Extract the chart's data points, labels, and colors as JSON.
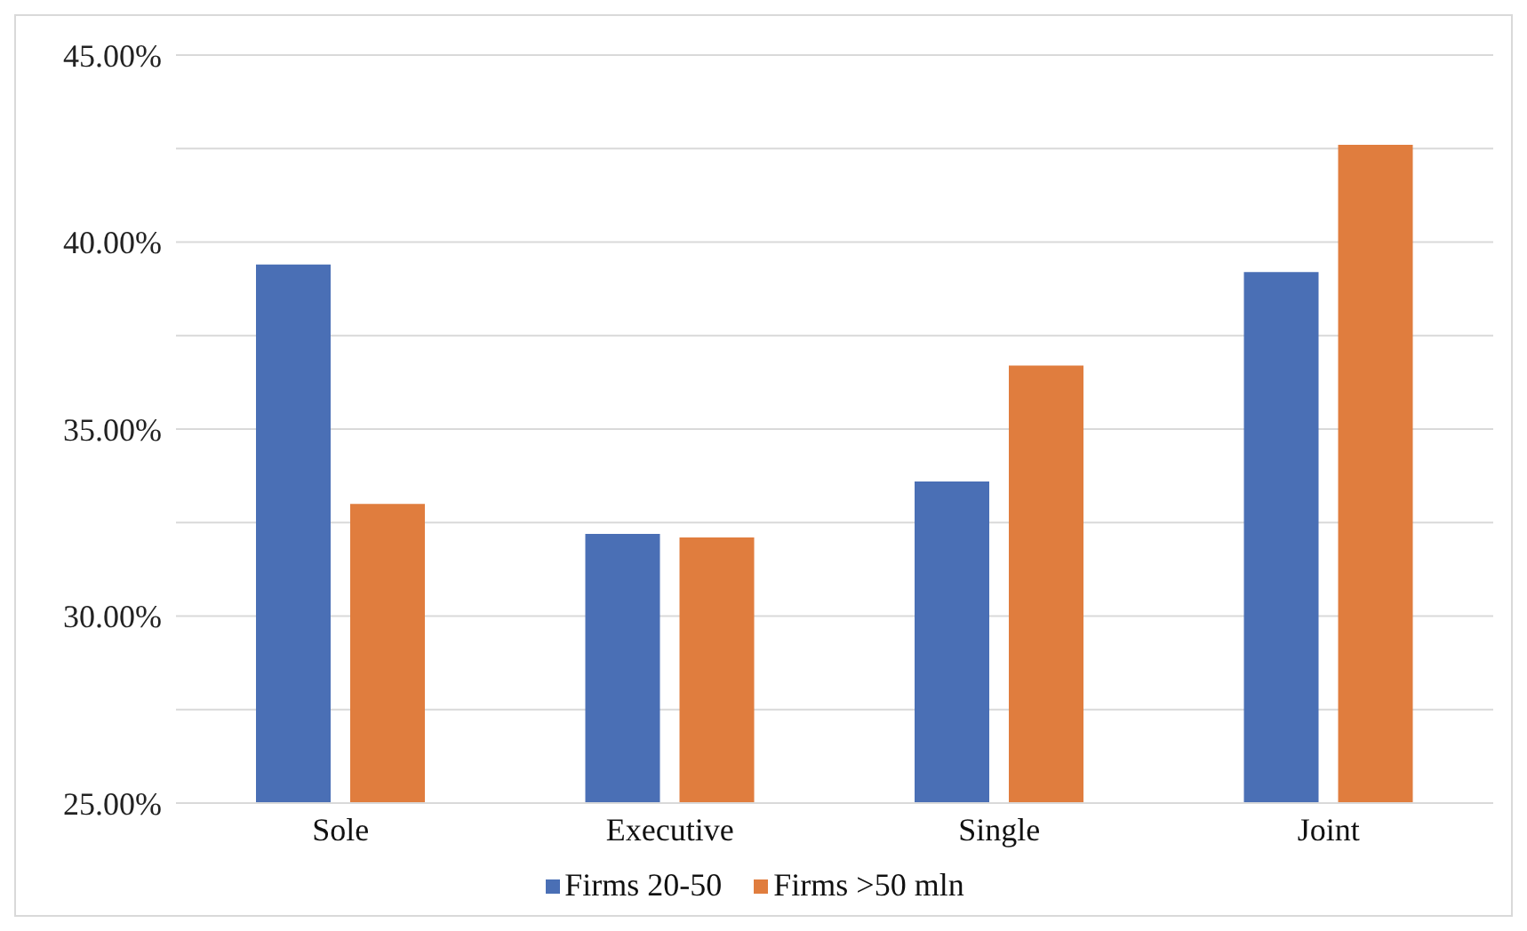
{
  "chart_data": {
    "type": "bar",
    "categories": [
      "Sole",
      "Executive",
      "Single",
      "Joint"
    ],
    "series": [
      {
        "name": "Firms 20-50",
        "color": "#4a6fb5",
        "values": [
          39.4,
          32.2,
          33.6,
          39.2
        ]
      },
      {
        "name": "Firms >50 mln",
        "color": "#e07d3e",
        "values": [
          33.0,
          32.1,
          36.7,
          42.6
        ]
      }
    ],
    "ylim": [
      25,
      45
    ],
    "yticks": [
      {
        "value": 25,
        "label": "25.00%"
      },
      {
        "value": 27.5,
        "label": null
      },
      {
        "value": 30,
        "label": "30.00%"
      },
      {
        "value": 32.5,
        "label": null
      },
      {
        "value": 35,
        "label": "35.00%"
      },
      {
        "value": 37.5,
        "label": null
      },
      {
        "value": 40,
        "label": "40.00%"
      },
      {
        "value": 42.5,
        "label": null
      },
      {
        "value": 45,
        "label": "45.00%"
      }
    ],
    "grid": "y",
    "legend": "bottom"
  }
}
